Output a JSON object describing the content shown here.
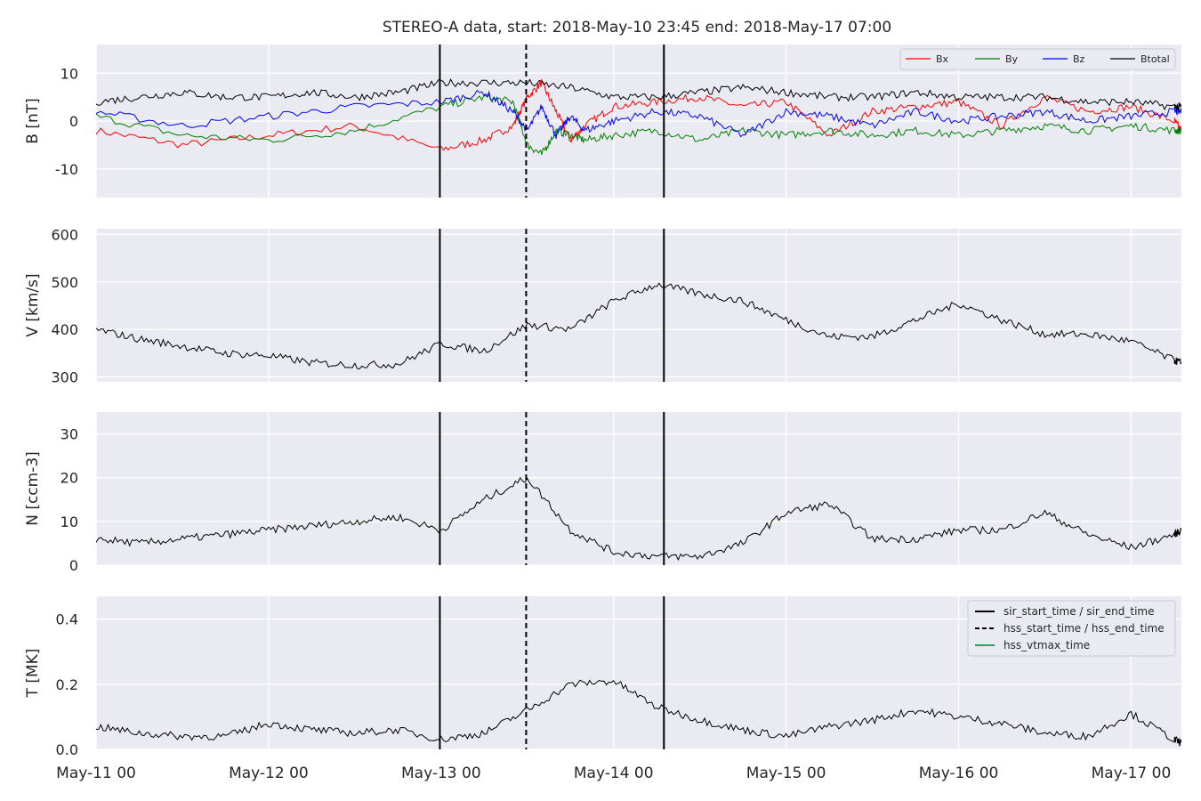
{
  "title": "STEREO-A data, start: 2018-May-10 23:45  end: 2018-May-17 07:00",
  "colors": {
    "bg": "#eaeaf2",
    "grid": "#ffffff",
    "bx": "#ff0000",
    "by": "#008000",
    "bz": "#0000ff",
    "btotal": "#000000",
    "vtmax": "#2ca25f"
  },
  "xaxis": {
    "start": "2018-05-11 00:00",
    "end": "2018-05-17 07:00",
    "ticks": [
      "2018-05-11 00:00",
      "2018-05-12 00:00",
      "2018-05-13 00:00",
      "2018-05-14 00:00",
      "2018-05-15 00:00",
      "2018-05-16 00:00",
      "2018-05-17 00:00"
    ],
    "tick_labels": [
      "May-11 00",
      "May-12 00",
      "May-13 00",
      "May-14 00",
      "May-15 00",
      "May-16 00",
      "May-17 00"
    ]
  },
  "events": [
    {
      "time": "2018-05-12 23:50",
      "style": "solid"
    },
    {
      "time": "2018-05-13 11:50",
      "style": "dashed"
    },
    {
      "time": "2018-05-14 07:00",
      "style": "solid"
    }
  ],
  "legend_b": {
    "position": "upper-right",
    "items": [
      "Bx",
      "By",
      "Bz",
      "Btotal"
    ]
  },
  "legend_t": {
    "position": "upper-right",
    "items": [
      "sir_start_time / sir_end_time",
      "hss_start_time / hss_end_time",
      "hss_vtmax_time"
    ]
  },
  "chart_data": [
    {
      "type": "line",
      "ylabel": "B [nT]",
      "ylim": [
        -16,
        16
      ],
      "yticks": [
        10,
        0,
        -10
      ],
      "grid": true,
      "series": [
        {
          "name": "Bx",
          "x_hours": [
            0,
            12,
            24,
            36,
            48,
            54,
            58,
            60,
            62,
            64,
            66,
            68,
            72,
            78,
            84,
            90,
            96,
            102,
            108,
            114,
            120,
            126,
            132,
            138,
            144,
            150,
            151
          ],
          "values": [
            -2,
            -5,
            -3,
            -1,
            -6,
            -4,
            -1,
            5,
            8,
            2,
            -4,
            -1,
            3,
            4,
            5,
            3,
            4,
            -3,
            2,
            3,
            4,
            -1,
            5,
            2,
            3,
            0,
            -2
          ]
        },
        {
          "name": "By",
          "x_hours": [
            0,
            12,
            24,
            36,
            48,
            54,
            58,
            60,
            62,
            64,
            66,
            68,
            72,
            78,
            84,
            90,
            96,
            102,
            108,
            114,
            120,
            126,
            132,
            138,
            144,
            150,
            151
          ],
          "values": [
            1,
            -3,
            -4,
            -2,
            3,
            5,
            4,
            -5,
            -7,
            -2,
            -3,
            -4,
            -3,
            -2,
            -4,
            -2,
            -3,
            -2,
            -3,
            -2,
            -3,
            -2,
            -1,
            -2,
            -1,
            -2,
            -2
          ]
        },
        {
          "name": "Bz",
          "x_hours": [
            0,
            12,
            24,
            36,
            48,
            54,
            58,
            60,
            62,
            64,
            66,
            68,
            72,
            78,
            84,
            90,
            96,
            102,
            108,
            114,
            120,
            126,
            132,
            138,
            144,
            150,
            151
          ],
          "values": [
            2,
            -1,
            1,
            3,
            4,
            6,
            2,
            -2,
            3,
            -3,
            1,
            -2,
            0,
            2,
            1,
            -3,
            2,
            1,
            -1,
            2,
            0,
            1,
            2,
            0,
            1,
            2,
            2
          ]
        },
        {
          "name": "Btotal",
          "x_hours": [
            0,
            6,
            12,
            18,
            24,
            30,
            36,
            42,
            48,
            54,
            60,
            66,
            72,
            78,
            84,
            90,
            96,
            102,
            108,
            114,
            120,
            126,
            132,
            138,
            144,
            150,
            151
          ],
          "values": [
            4,
            5,
            6,
            5,
            5,
            6,
            5,
            6,
            8,
            8,
            8,
            7,
            5,
            5,
            6,
            7,
            6,
            5,
            5,
            6,
            5,
            5,
            5,
            4,
            4,
            3,
            3
          ]
        }
      ]
    },
    {
      "type": "line",
      "ylabel": "V [km/s]",
      "ylim": [
        290,
        612
      ],
      "yticks": [
        600,
        500,
        400,
        300
      ],
      "grid": true,
      "series": [
        {
          "name": "",
          "x_hours": [
            0,
            6,
            12,
            18,
            24,
            30,
            36,
            42,
            48,
            54,
            60,
            66,
            72,
            78,
            84,
            90,
            96,
            102,
            108,
            114,
            120,
            126,
            132,
            138,
            144,
            150,
            151
          ],
          "values": [
            400,
            380,
            365,
            350,
            345,
            330,
            325,
            327,
            370,
            355,
            410,
            400,
            460,
            495,
            475,
            460,
            420,
            385,
            385,
            420,
            455,
            420,
            390,
            390,
            375,
            335,
            330
          ]
        }
      ]
    },
    {
      "type": "line",
      "ylabel": "N [ccm-3]",
      "ylim": [
        0,
        35
      ],
      "yticks": [
        30,
        20,
        10,
        0
      ],
      "grid": true,
      "series": [
        {
          "name": "",
          "x_hours": [
            0,
            6,
            12,
            18,
            24,
            30,
            36,
            42,
            48,
            54,
            60,
            66,
            72,
            78,
            84,
            90,
            96,
            102,
            108,
            114,
            120,
            126,
            132,
            138,
            144,
            150,
            151
          ],
          "values": [
            6,
            5,
            6,
            7,
            8,
            9,
            10,
            11,
            8,
            15,
            20,
            8,
            3,
            2,
            2,
            5,
            12,
            14,
            6,
            6,
            8,
            8,
            12,
            7,
            4,
            7,
            8
          ]
        }
      ]
    },
    {
      "type": "line",
      "ylabel": "T [MK]",
      "ylim": [
        0,
        0.47
      ],
      "yticks": [
        0.4,
        0.2,
        0.0
      ],
      "grid": true,
      "series": [
        {
          "name": "",
          "x_hours": [
            0,
            6,
            12,
            18,
            24,
            30,
            36,
            42,
            48,
            54,
            60,
            66,
            72,
            78,
            84,
            90,
            96,
            102,
            108,
            114,
            120,
            126,
            132,
            138,
            144,
            150,
            151
          ],
          "values": [
            0.07,
            0.05,
            0.04,
            0.04,
            0.08,
            0.06,
            0.05,
            0.06,
            0.03,
            0.05,
            0.12,
            0.2,
            0.21,
            0.13,
            0.09,
            0.06,
            0.04,
            0.07,
            0.09,
            0.12,
            0.1,
            0.08,
            0.05,
            0.04,
            0.11,
            0.03,
            0.02
          ]
        }
      ]
    }
  ]
}
